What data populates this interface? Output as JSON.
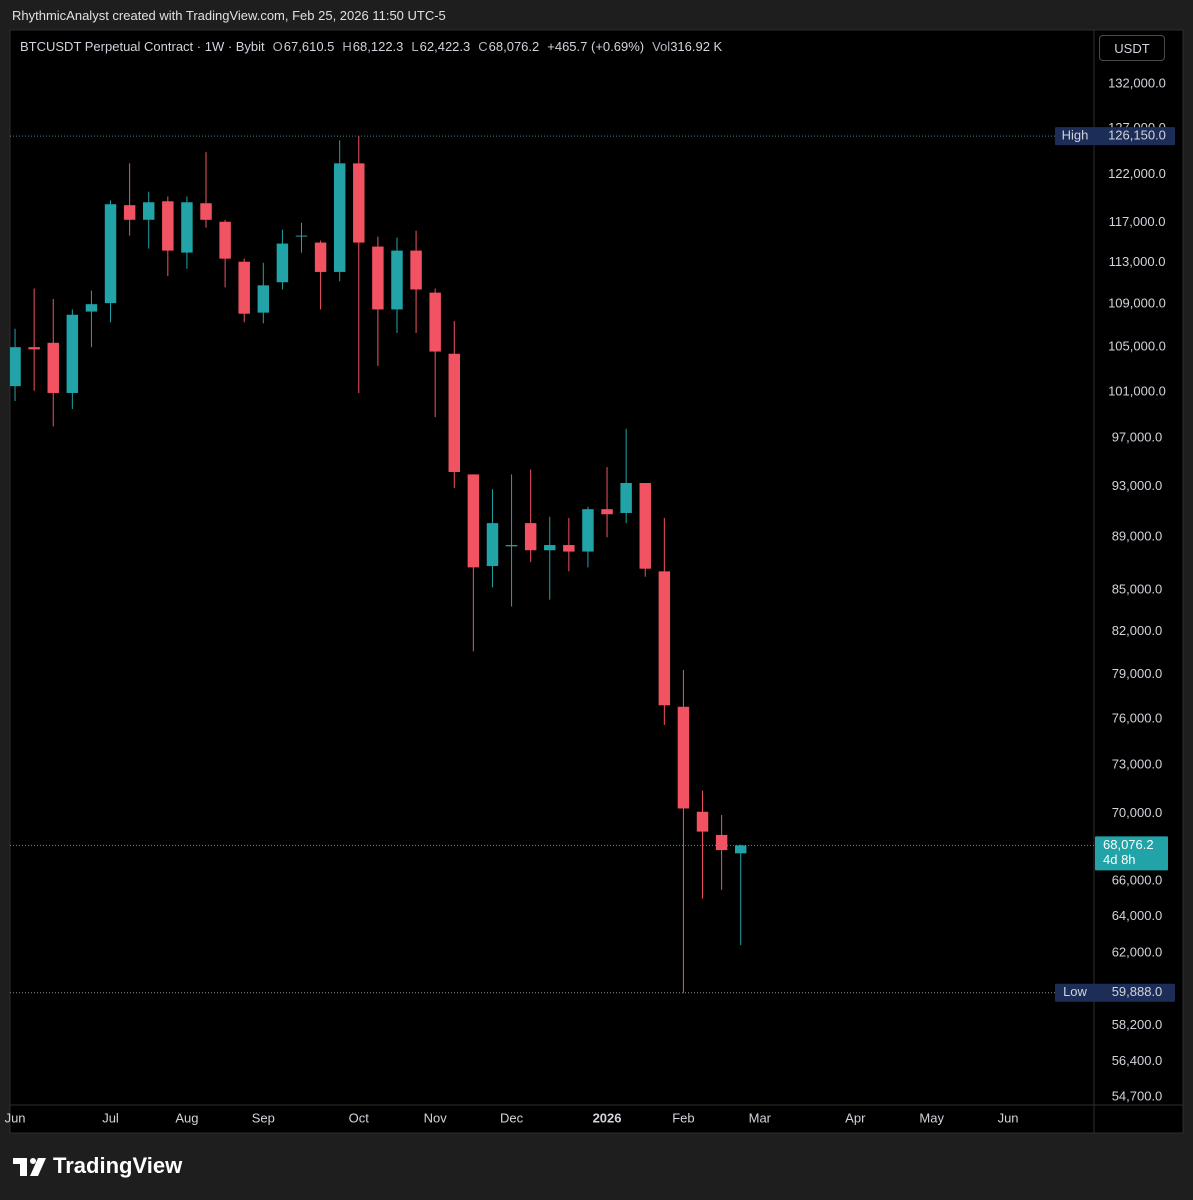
{
  "header": {
    "attribution": "RhythmicAnalyst created with TradingView.com, Feb 25, 2026 11:50 UTC-5"
  },
  "footer": {
    "brand": "TradingView"
  },
  "chart_data": {
    "type": "candlestick",
    "title": "BTCUSDT Perpetual Contract · 1W · Bybit",
    "legend_values": [
      {
        "label": "O",
        "value": "67,610.5"
      },
      {
        "label": "H",
        "value": "68,122.3"
      },
      {
        "label": "L",
        "value": "62,422.3"
      },
      {
        "label": "C",
        "value": "68,076.2"
      }
    ],
    "change": "+465.7 (+0.69%)",
    "volume": {
      "label": "Vol",
      "value": "316.92 K"
    },
    "unit": "USDT",
    "log_scale": true,
    "grid": false,
    "up_color": "#22a3a8",
    "down_color": "#f25362",
    "categories": [
      "Jun",
      null,
      null,
      null,
      null,
      "Jul",
      null,
      null,
      null,
      "Aug",
      null,
      null,
      null,
      "Sep",
      null,
      null,
      null,
      null,
      "Oct",
      null,
      null,
      null,
      "Nov",
      null,
      null,
      null,
      "Dec",
      null,
      null,
      null,
      null,
      "2026",
      null,
      null,
      null,
      "Feb",
      null,
      null,
      null,
      "Mar",
      null,
      null,
      null,
      null,
      "Apr",
      null,
      null,
      null,
      "May",
      null,
      null,
      null,
      "Jun",
      null,
      null,
      null,
      null
    ],
    "open": [
      101500,
      105000,
      105400,
      100900,
      108300,
      109100,
      118800,
      117300,
      119200,
      114000,
      119000,
      117100,
      113100,
      108200,
      111100,
      115600,
      115000,
      112100,
      123200,
      114600,
      108500,
      114200,
      110100,
      104400,
      94000,
      86800,
      88300,
      90100,
      88000,
      88400,
      87900,
      91200,
      90900,
      93300,
      86400,
      76800,
      70100,
      68700,
      67610.5,
      null,
      null,
      null,
      null,
      null,
      null,
      null,
      null,
      null,
      null,
      null,
      null,
      null,
      null,
      null,
      null,
      null,
      null
    ],
    "high": [
      106700,
      110500,
      109500,
      108500,
      110300,
      119300,
      123200,
      120200,
      119700,
      119700,
      124400,
      117300,
      113400,
      113000,
      116300,
      117000,
      115200,
      125700,
      126150,
      115600,
      115500,
      116200,
      110500,
      107400,
      94000,
      92800,
      94000,
      94400,
      90600,
      90500,
      91400,
      94600,
      97800,
      93300,
      90500,
      79300,
      71400,
      69900,
      68122.3,
      null,
      null,
      null,
      null,
      null,
      null,
      null,
      null,
      null,
      null,
      null,
      null,
      null,
      null,
      null,
      null,
      null,
      null
    ],
    "low": [
      100200,
      101100,
      98000,
      99500,
      105000,
      107300,
      115700,
      114400,
      111700,
      112400,
      116500,
      110600,
      107300,
      107200,
      110400,
      114000,
      108500,
      111200,
      100900,
      103300,
      106300,
      106300,
      98800,
      92900,
      80600,
      85200,
      83800,
      87100,
      84300,
      86400,
      86700,
      89000,
      90100,
      86000,
      75600,
      59888,
      65000,
      65500,
      62422.3,
      null,
      null,
      null,
      null,
      null,
      null,
      null,
      null,
      null,
      null,
      null,
      null,
      null,
      null,
      null,
      null,
      null,
      null
    ],
    "close": [
      105000,
      104800,
      100900,
      108000,
      109000,
      118900,
      117300,
      119100,
      114200,
      119100,
      117300,
      113400,
      108100,
      110800,
      114900,
      115700,
      112100,
      123200,
      115000,
      108500,
      114200,
      110400,
      104600,
      94200,
      86700,
      90100,
      88400,
      88000,
      88400,
      87900,
      91200,
      90800,
      93300,
      86600,
      76900,
      70300,
      68900,
      67800,
      68076.2,
      null,
      null,
      null,
      null,
      null,
      null,
      null,
      null,
      null,
      null,
      null,
      null,
      null,
      null,
      null,
      null,
      null,
      null
    ],
    "ylim": [
      54320,
      138350
    ],
    "yticks": [
      {
        "value": 132000,
        "label": "132,000.0"
      },
      {
        "value": 127000,
        "label": "127,000.0"
      },
      {
        "value": 122000,
        "label": "122,000.0"
      },
      {
        "value": 117000,
        "label": "117,000.0"
      },
      {
        "value": 113000,
        "label": "113,000.0"
      },
      {
        "value": 109000,
        "label": "109,000.0"
      },
      {
        "value": 105000,
        "label": "105,000.0"
      },
      {
        "value": 101000,
        "label": "101,000.0"
      },
      {
        "value": 97000,
        "label": "97,000.0"
      },
      {
        "value": 93000,
        "label": "93,000.0"
      },
      {
        "value": 89000,
        "label": "89,000.0"
      },
      {
        "value": 85000,
        "label": "85,000.0"
      },
      {
        "value": 82000,
        "label": "82,000.0"
      },
      {
        "value": 79000,
        "label": "79,000.0"
      },
      {
        "value": 76000,
        "label": "76,000.0"
      },
      {
        "value": 73000,
        "label": "73,000.0"
      },
      {
        "value": 70000,
        "label": "70,000.0"
      },
      {
        "value": 66000,
        "label": "66,000.0"
      },
      {
        "value": 64000,
        "label": "64,000.0"
      },
      {
        "value": 62000,
        "label": "62,000.0"
      },
      {
        "value": 58200,
        "label": "58,200.0"
      },
      {
        "value": 56400,
        "label": "56,400.0"
      },
      {
        "value": 54700,
        "label": "54,700.0"
      }
    ],
    "reference_lines": [
      {
        "name": "High",
        "value": 126150,
        "label": "126,150.0",
        "color": "#2a8f96"
      },
      {
        "name": "Low",
        "value": 59888,
        "label": "59,888.0",
        "color": "#8a8a8a"
      }
    ],
    "reference_label_color": "#1c2d57",
    "last_price": {
      "value": 68076.2,
      "label": "68,076.2",
      "countdown": "4d 8h"
    }
  }
}
